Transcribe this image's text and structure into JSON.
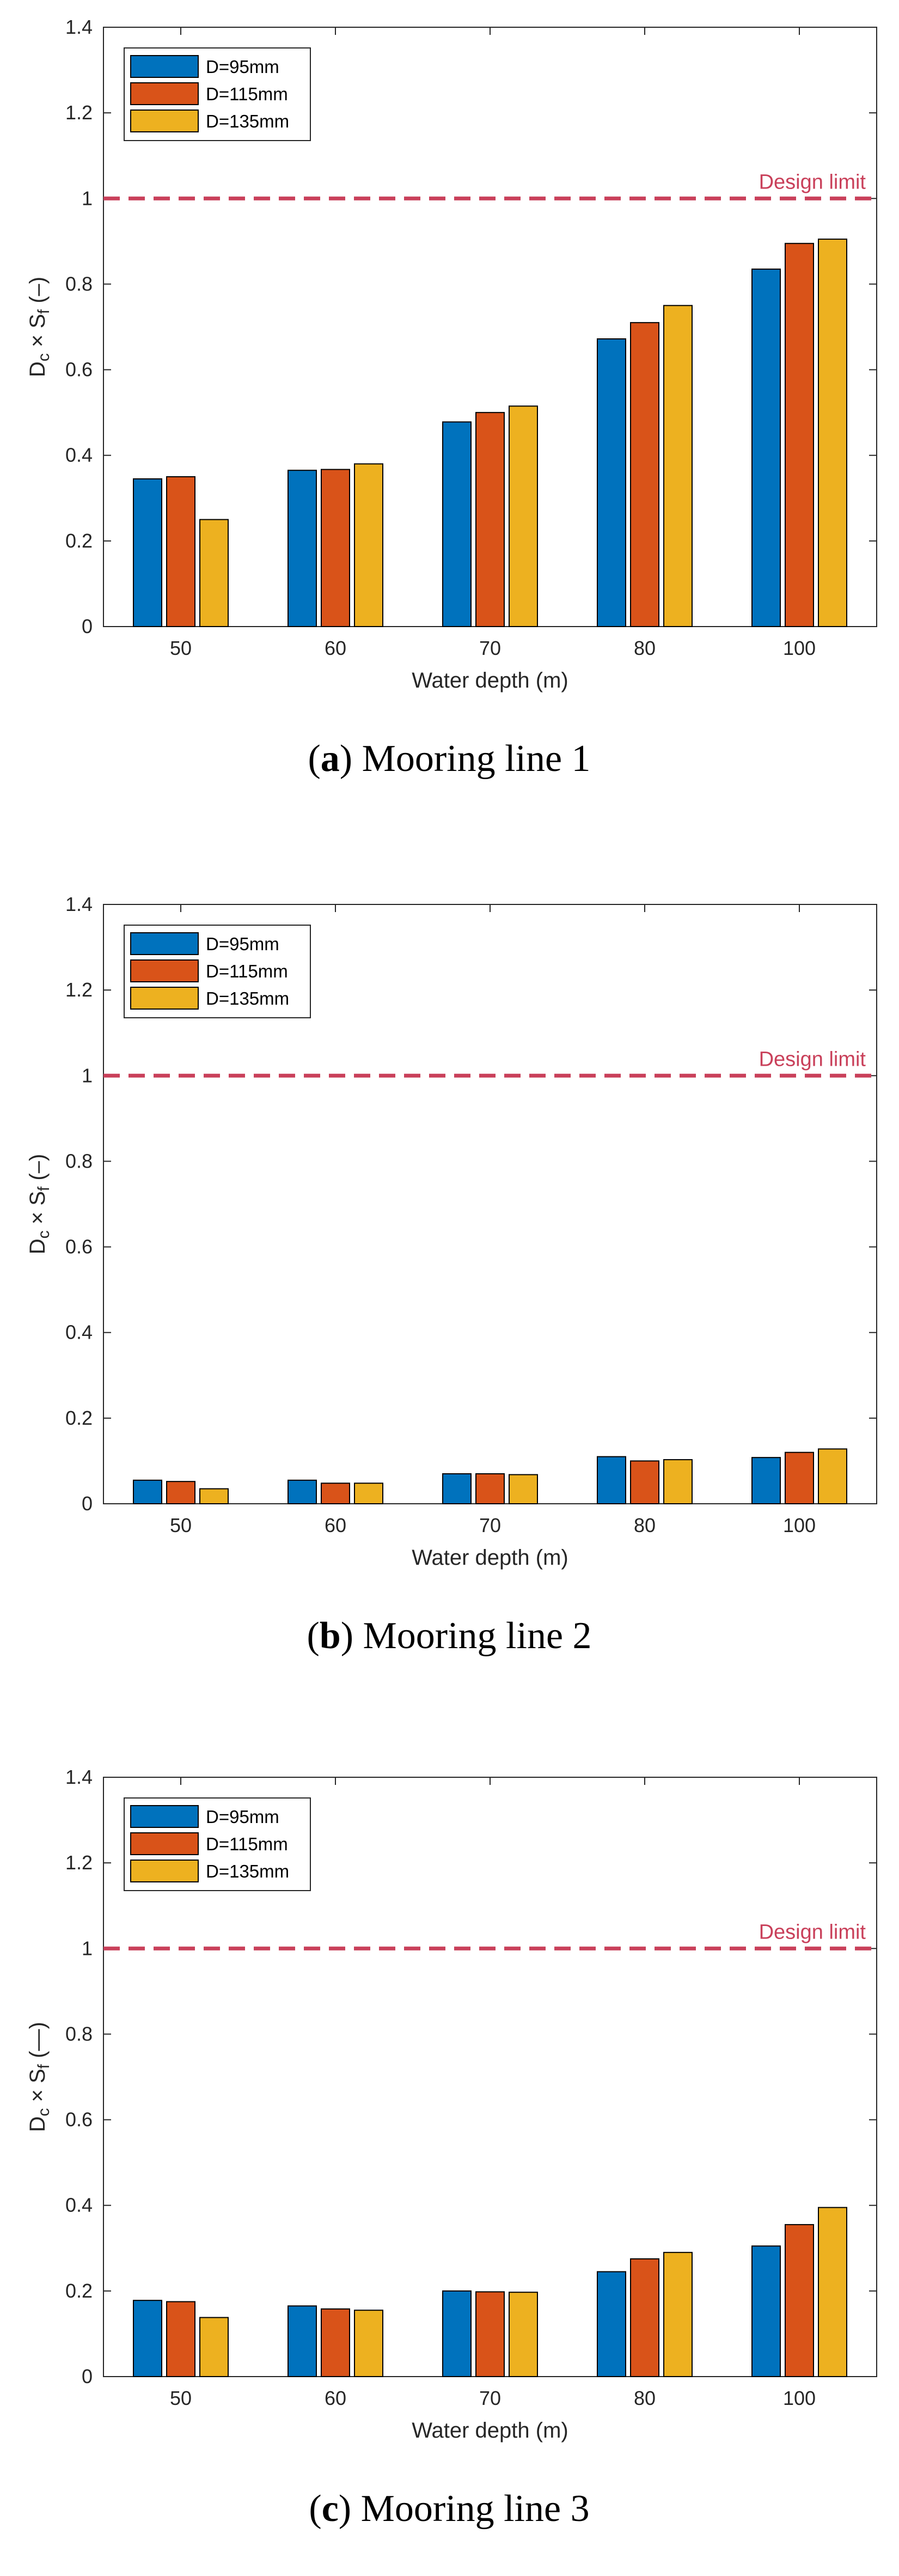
{
  "colors": {
    "D=95mm": "#0072BD",
    "D=115mm": "#D95319",
    "D=135mm": "#EDB120",
    "design_limit": "#C9405A",
    "axis": "#262626",
    "grid_none": "#ffffff"
  },
  "chart_data": [
    {
      "type": "bar",
      "panel": "a",
      "caption_letter": "a",
      "caption_text": "Mooring line 1",
      "categories": [
        "50",
        "60",
        "70",
        "80",
        "100"
      ],
      "series": [
        {
          "name": "D=95mm",
          "values": [
            0.345,
            0.365,
            0.478,
            0.672,
            0.835
          ]
        },
        {
          "name": "D=115mm",
          "values": [
            0.35,
            0.367,
            0.5,
            0.71,
            0.895
          ]
        },
        {
          "name": "D=135mm",
          "values": [
            0.25,
            0.38,
            0.515,
            0.75,
            0.905
          ]
        }
      ],
      "xlabel": "Water depth (m)",
      "ylabel_main": "D",
      "ylabel_sub1": "c",
      "ylabel_mid": " × S",
      "ylabel_sub2": "f",
      "ylabel_tail": " (–)",
      "ylim": [
        0,
        1.4
      ],
      "yticks": [
        "0",
        "0.2",
        "0.4",
        "0.6",
        "0.8",
        "1",
        "1.2",
        "1.4"
      ],
      "design_limit": {
        "value": 1,
        "label": "Design limit"
      },
      "legend": "top-left"
    },
    {
      "type": "bar",
      "panel": "b",
      "caption_letter": "b",
      "caption_text": "Mooring line 2",
      "categories": [
        "50",
        "60",
        "70",
        "80",
        "100"
      ],
      "series": [
        {
          "name": "D=95mm",
          "values": [
            0.055,
            0.055,
            0.07,
            0.11,
            0.108
          ]
        },
        {
          "name": "D=115mm",
          "values": [
            0.052,
            0.048,
            0.07,
            0.1,
            0.12
          ]
        },
        {
          "name": "D=135mm",
          "values": [
            0.035,
            0.048,
            0.068,
            0.103,
            0.128
          ]
        }
      ],
      "xlabel": "Water depth (m)",
      "ylabel_main": "D",
      "ylabel_sub1": "c",
      "ylabel_mid": " × S",
      "ylabel_sub2": "f",
      "ylabel_tail": " (–)",
      "ylim": [
        0,
        1.4
      ],
      "yticks": [
        "0",
        "0.2",
        "0.4",
        "0.6",
        "0.8",
        "1",
        "1.2",
        "1.4"
      ],
      "design_limit": {
        "value": 1,
        "label": "Design limit"
      },
      "legend": "top-left"
    },
    {
      "type": "bar",
      "panel": "c",
      "caption_letter": "c",
      "caption_text": "Mooring line 3",
      "categories": [
        "50",
        "60",
        "70",
        "80",
        "100"
      ],
      "series": [
        {
          "name": "D=95mm",
          "values": [
            0.178,
            0.165,
            0.2,
            0.245,
            0.305
          ]
        },
        {
          "name": "D=115mm",
          "values": [
            0.175,
            0.158,
            0.198,
            0.275,
            0.355
          ]
        },
        {
          "name": "D=135mm",
          "values": [
            0.138,
            0.155,
            0.197,
            0.29,
            0.395
          ]
        }
      ],
      "xlabel": "Water depth (m)",
      "ylabel_main": "D",
      "ylabel_sub1": "c",
      "ylabel_mid": " × S",
      "ylabel_sub2": "f",
      "ylabel_tail": " (—)",
      "ylim": [
        0,
        1.4
      ],
      "yticks": [
        "0",
        "0.2",
        "0.4",
        "0.6",
        "0.8",
        "1",
        "1.2",
        "1.4"
      ],
      "design_limit": {
        "value": 1,
        "label": "Design limit"
      },
      "legend": "top-left"
    }
  ]
}
